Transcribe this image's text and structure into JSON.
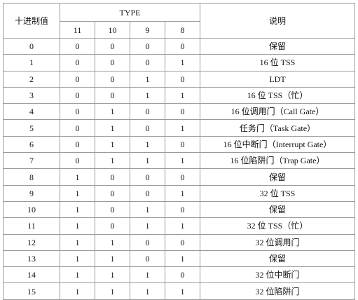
{
  "header": {
    "decimal": "十进制值",
    "type": "TYPE",
    "description": "说明",
    "bits": [
      "11",
      "10",
      "9",
      "8"
    ]
  },
  "rows": [
    {
      "dec": "0",
      "bits": [
        "0",
        "0",
        "0",
        "0"
      ],
      "desc": "保留"
    },
    {
      "dec": "1",
      "bits": [
        "0",
        "0",
        "0",
        "1"
      ],
      "desc": "16 位 TSS"
    },
    {
      "dec": "2",
      "bits": [
        "0",
        "0",
        "1",
        "0"
      ],
      "desc": "LDT"
    },
    {
      "dec": "3",
      "bits": [
        "0",
        "0",
        "1",
        "1"
      ],
      "desc": "16 位 TSS（忙）"
    },
    {
      "dec": "4",
      "bits": [
        "0",
        "1",
        "0",
        "0"
      ],
      "desc": "16 位调用门（Call Gate）"
    },
    {
      "dec": "5",
      "bits": [
        "0",
        "1",
        "0",
        "1"
      ],
      "desc": "任务门（Task Gate）"
    },
    {
      "dec": "6",
      "bits": [
        "0",
        "1",
        "1",
        "0"
      ],
      "desc": "16 位中断门（Interrupt Gate）"
    },
    {
      "dec": "7",
      "bits": [
        "0",
        "1",
        "1",
        "1"
      ],
      "desc": "16 位陷阱门（Trap Gate）"
    },
    {
      "dec": "8",
      "bits": [
        "1",
        "0",
        "0",
        "0"
      ],
      "desc": "保留"
    },
    {
      "dec": "9",
      "bits": [
        "1",
        "0",
        "0",
        "1"
      ],
      "desc": "32 位 TSS"
    },
    {
      "dec": "10",
      "bits": [
        "1",
        "0",
        "1",
        "0"
      ],
      "desc": "保留"
    },
    {
      "dec": "11",
      "bits": [
        "1",
        "0",
        "1",
        "1"
      ],
      "desc": "32 位 TSS（忙）"
    },
    {
      "dec": "12",
      "bits": [
        "1",
        "1",
        "0",
        "0"
      ],
      "desc": "32 位调用门"
    },
    {
      "dec": "13",
      "bits": [
        "1",
        "1",
        "0",
        "1"
      ],
      "desc": "保留"
    },
    {
      "dec": "14",
      "bits": [
        "1",
        "1",
        "1",
        "0"
      ],
      "desc": "32 位中断门"
    },
    {
      "dec": "15",
      "bits": [
        "1",
        "1",
        "1",
        "1"
      ],
      "desc": "32 位陷阱门"
    }
  ]
}
